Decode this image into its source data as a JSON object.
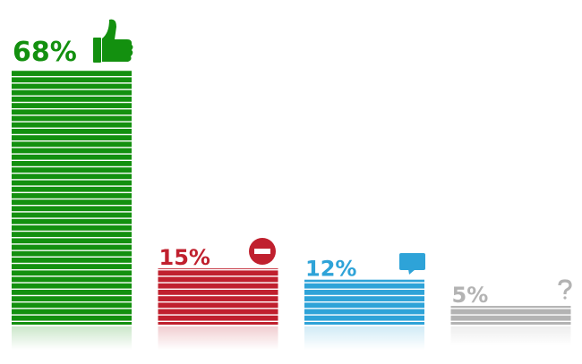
{
  "chart_data": {
    "type": "bar",
    "categories": [
      null,
      null,
      null,
      null
    ],
    "values": [
      68,
      15,
      12,
      5
    ],
    "value_labels": [
      "68%",
      "15%",
      "12%",
      "5%"
    ],
    "colors": [
      "#13900f",
      "#c0202e",
      "#2ea3d8",
      "#b3b3b3"
    ]
  }
}
